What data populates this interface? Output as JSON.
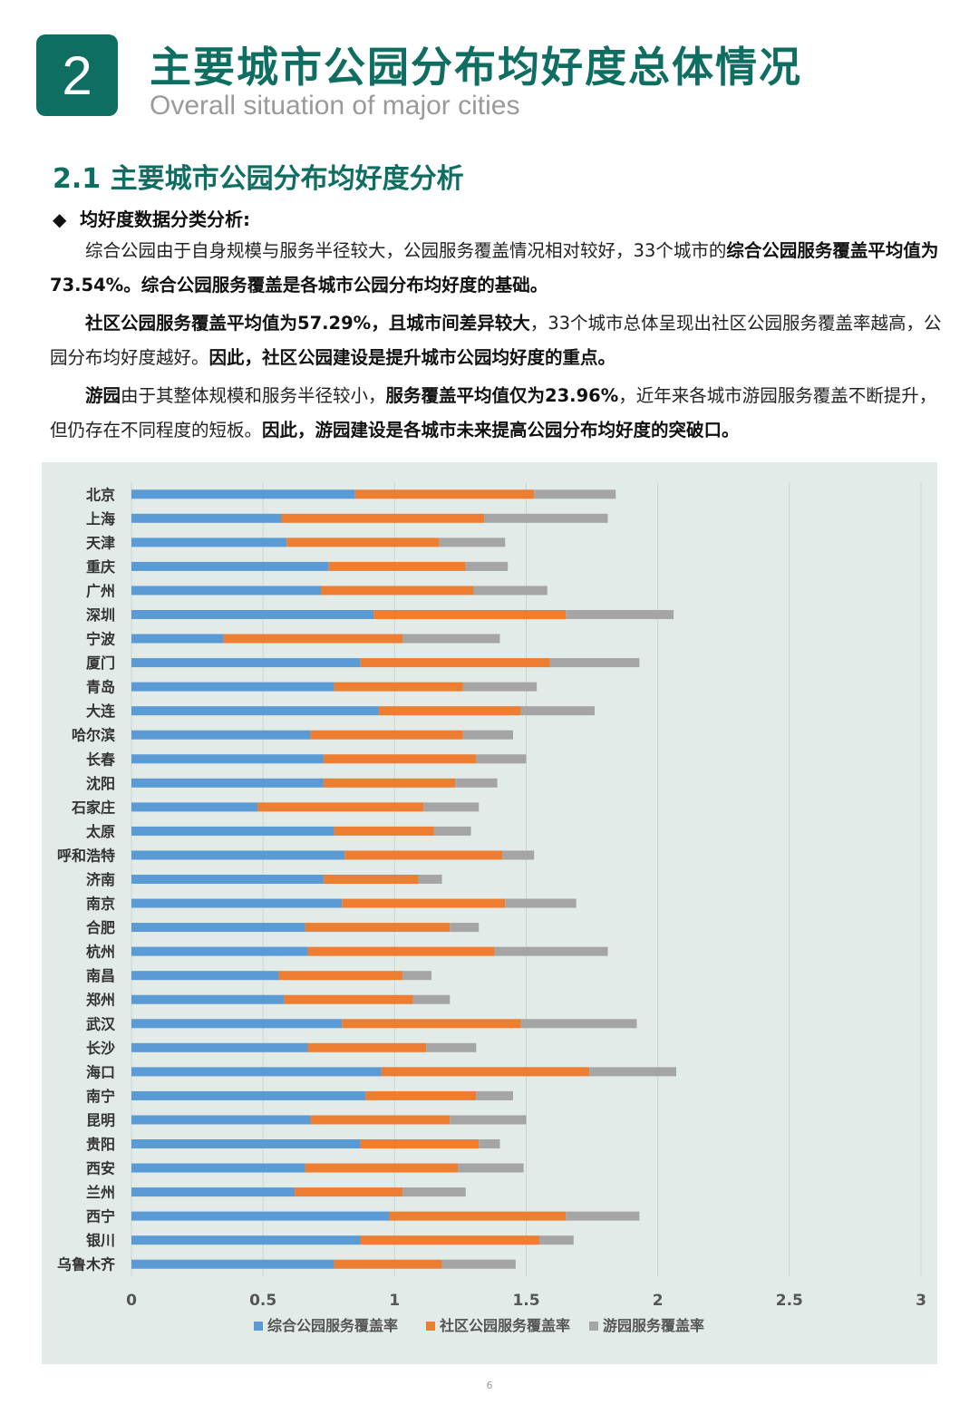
{
  "header": {
    "section_number": "2",
    "title": "主要城市公园分布均好度总体情况",
    "subtitle": "Overall situation of major cities"
  },
  "section": {
    "heading": "2.1 主要城市公园分布均好度分析",
    "bullet_icon": "diamond-icon",
    "bullet_marker": "◆",
    "bullet_title": "均好度数据分类分析:",
    "p1_a": "综合公园由于自身规模与服务半径较大，公园服务覆盖情况相对较好，33个城市的",
    "p1_b": "综合公园服务覆盖平均值为73.54%。综合公园服务覆盖是各城市公园分布均好度的基础。",
    "p2_a": "社区公园服务覆盖平均值为57.29%，且城市间差异较大",
    "p2_b": "，33个城市总体呈现出社区公园服务覆盖率越高，公园分布均好度越好。",
    "p2_c": "因此，社区公园建设是提升城市公园均好度的重点。",
    "p3_a": "游园",
    "p3_b": "由于其整体规模和服务半径较小，",
    "p3_c": "服务覆盖平均值仅为23.96%",
    "p3_d": "，近年来各城市游园服务覆盖不断提升，但仍存在不同程度的短板。",
    "p3_e": "因此，游园建设是各城市未来提高公园分布均好度的突破口。"
  },
  "page_number": "6",
  "chart_data": {
    "type": "bar",
    "orientation": "horizontal",
    "stacked": true,
    "title": "",
    "xlabel": "",
    "ylabel": "",
    "xlim": [
      0,
      3
    ],
    "x_ticks": [
      "0",
      "0.5",
      "1",
      "1.5",
      "2",
      "2.5",
      "3"
    ],
    "grid": true,
    "legend_position": "bottom",
    "categories": [
      "北京",
      "上海",
      "天津",
      "重庆",
      "广州",
      "深圳",
      "宁波",
      "厦门",
      "青岛",
      "大连",
      "哈尔滨",
      "长春",
      "沈阳",
      "石家庄",
      "太原",
      "呼和浩特",
      "济南",
      "南京",
      "合肥",
      "杭州",
      "南昌",
      "郑州",
      "武汉",
      "长沙",
      "海口",
      "南宁",
      "昆明",
      "贵阳",
      "西安",
      "兰州",
      "西宁",
      "银川",
      "乌鲁木齐"
    ],
    "series": [
      {
        "name": "综合公园服务覆盖率",
        "color": "#5b9bd5",
        "values": [
          0.85,
          0.57,
          0.59,
          0.75,
          0.72,
          0.92,
          0.35,
          0.87,
          0.77,
          0.94,
          0.68,
          0.73,
          0.73,
          0.48,
          0.77,
          0.81,
          0.73,
          0.8,
          0.66,
          0.67,
          0.56,
          0.58,
          0.8,
          0.67,
          0.95,
          0.89,
          0.68,
          0.87,
          0.66,
          0.62,
          0.98,
          0.87,
          0.77
        ]
      },
      {
        "name": "社区公园服务覆盖率",
        "color": "#ed7d31",
        "values": [
          0.68,
          0.77,
          0.58,
          0.52,
          0.58,
          0.73,
          0.68,
          0.72,
          0.49,
          0.54,
          0.58,
          0.58,
          0.5,
          0.63,
          0.38,
          0.6,
          0.36,
          0.62,
          0.55,
          0.71,
          0.47,
          0.49,
          0.68,
          0.45,
          0.79,
          0.42,
          0.53,
          0.45,
          0.58,
          0.41,
          0.67,
          0.68,
          0.41
        ]
      },
      {
        "name": "游园服务覆盖率",
        "color": "#a5a5a5",
        "values": [
          0.31,
          0.47,
          0.25,
          0.16,
          0.28,
          0.41,
          0.37,
          0.34,
          0.28,
          0.28,
          0.19,
          0.19,
          0.16,
          0.21,
          0.14,
          0.12,
          0.09,
          0.27,
          0.11,
          0.43,
          0.11,
          0.14,
          0.44,
          0.19,
          0.33,
          0.14,
          0.29,
          0.08,
          0.25,
          0.24,
          0.28,
          0.13,
          0.28
        ]
      }
    ]
  }
}
